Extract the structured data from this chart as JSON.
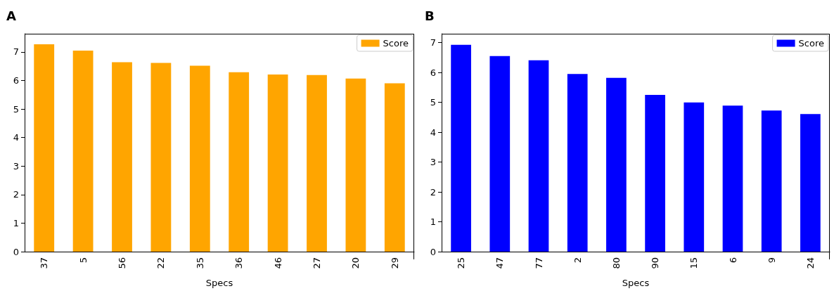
{
  "chart_data": [
    {
      "type": "bar",
      "title": "A",
      "xlabel": "Specs",
      "categories": [
        "37",
        "5",
        "56",
        "22",
        "35",
        "36",
        "46",
        "27",
        "20",
        "29"
      ],
      "series": [
        {
          "name": "Score",
          "color": "#ffa500",
          "values": [
            7.27,
            7.05,
            6.64,
            6.62,
            6.52,
            6.29,
            6.21,
            6.19,
            6.07,
            5.9
          ]
        }
      ],
      "ylim": [
        0,
        7.64
      ],
      "yticks": [
        0,
        1,
        2,
        3,
        4,
        5,
        6,
        7
      ],
      "grid": false,
      "legend": "top right"
    },
    {
      "type": "bar",
      "title": "B",
      "xlabel": "Specs",
      "categories": [
        "25",
        "47",
        "77",
        "2",
        "80",
        "90",
        "15",
        "6",
        "9",
        "24"
      ],
      "series": [
        {
          "name": "Score",
          "color": "#0000ff",
          "values": [
            6.93,
            6.55,
            6.41,
            5.95,
            5.82,
            5.25,
            5.0,
            4.89,
            4.73,
            4.61
          ]
        }
      ],
      "ylim": [
        0,
        7.3
      ],
      "yticks": [
        0,
        1,
        2,
        3,
        4,
        5,
        6,
        7
      ],
      "grid": false,
      "legend": "top right"
    }
  ]
}
